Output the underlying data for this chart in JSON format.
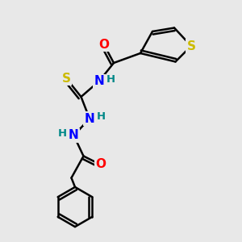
{
  "background_color": "#e8e8e8",
  "bond_color": "#000000",
  "bond_width": 1.8,
  "atom_colors": {
    "O": "#ff0000",
    "N": "#0000ff",
    "S_thio": "#ccbb00",
    "S_ring": "#ccbb00",
    "H": "#008888",
    "C": "#000000"
  },
  "font_size_atoms": 11,
  "font_size_H": 9.5
}
